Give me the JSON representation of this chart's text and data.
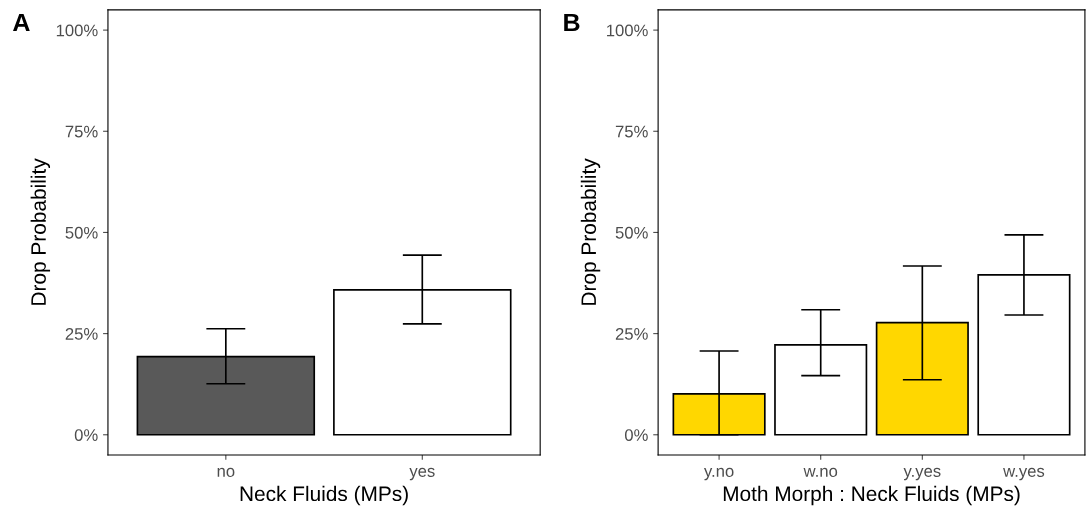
{
  "chart_data": [
    {
      "type": "bar",
      "title": "A",
      "xlabel": "Neck Fluids (MPs)",
      "ylabel": "Drop Probability",
      "categories": [
        "no",
        "yes"
      ],
      "values": [
        19.3,
        35.8
      ],
      "colors": [
        "#595959",
        "#ffffff"
      ],
      "errors": [
        [
          12.6,
          26.2
        ],
        [
          27.4,
          44.4
        ]
      ],
      "ylim": [
        -5,
        105
      ],
      "yticks": [
        {
          "value": 0,
          "label": "0%"
        },
        {
          "value": 25,
          "label": "25%"
        },
        {
          "value": 50,
          "label": "50%"
        },
        {
          "value": 75,
          "label": "75%"
        },
        {
          "value": 100,
          "label": "100%"
        }
      ],
      "grid": false,
      "legend": false
    },
    {
      "type": "bar",
      "title": "B",
      "xlabel": "Moth Morph : Neck Fluids (MPs)",
      "ylabel": "Drop Probability",
      "categories": [
        "y.no",
        "w.no",
        "y.yes",
        "w.yes"
      ],
      "values": [
        10.1,
        22.2,
        27.7,
        39.5
      ],
      "colors": [
        "#ffd700",
        "#ffffff",
        "#ffd700",
        "#ffffff"
      ],
      "errors": [
        [
          0,
          20.7
        ],
        [
          14.6,
          30.9
        ],
        [
          13.6,
          41.7
        ],
        [
          29.6,
          49.4
        ]
      ],
      "ylim": [
        -5,
        105
      ],
      "yticks": [
        {
          "value": 0,
          "label": "0%"
        },
        {
          "value": 25,
          "label": "25%"
        },
        {
          "value": 50,
          "label": "50%"
        },
        {
          "value": 75,
          "label": "75%"
        },
        {
          "value": 100,
          "label": "100%"
        }
      ],
      "grid": false,
      "legend": false
    }
  ]
}
